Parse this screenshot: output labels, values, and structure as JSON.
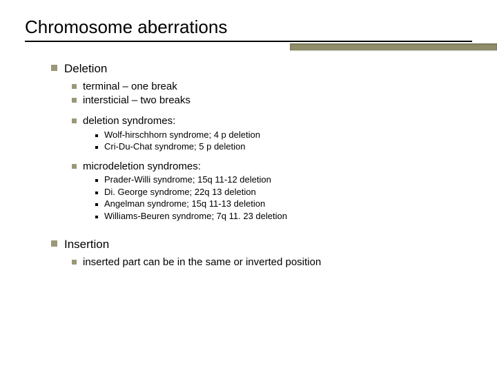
{
  "title": "Chromosome aberrations",
  "colors": {
    "bullet_square": "#9a9878",
    "accent_bar": "#8f8c6a",
    "rule": "#000000",
    "text": "#000000",
    "background": "#ffffff"
  },
  "typography": {
    "title_fontsize": 26,
    "l1_fontsize": 17,
    "l2_fontsize": 15,
    "l3_fontsize": 13,
    "font_family": "Arial"
  },
  "layout": {
    "slide_width": 720,
    "slide_height": 540,
    "accent_bar_width": 300,
    "accent_bar_height": 10
  },
  "sections": {
    "deletion": {
      "label": "Deletion",
      "items": [
        {
          "text": "terminal – one break"
        },
        {
          "text": "intersticial – two breaks"
        },
        {
          "text": "deletion syndromes:",
          "sub": [
            "Wolf-hirschhorn syndrome; 4 p deletion",
            "Cri-Du-Chat syndrome; 5 p deletion"
          ]
        },
        {
          "text": "microdeletion syndromes:",
          "sub": [
            "Prader-Willi syndrome; 15q 11-12 deletion",
            "Di. George syndrome; 22q 13 deletion",
            "Angelman syndrome; 15q 11-13 deletion",
            "Williams-Beuren syndrome; 7q 11. 23 deletion"
          ]
        }
      ]
    },
    "insertion": {
      "label": "Insertion",
      "items": [
        {
          "text": "inserted part can be in the same or inverted position"
        }
      ]
    }
  }
}
